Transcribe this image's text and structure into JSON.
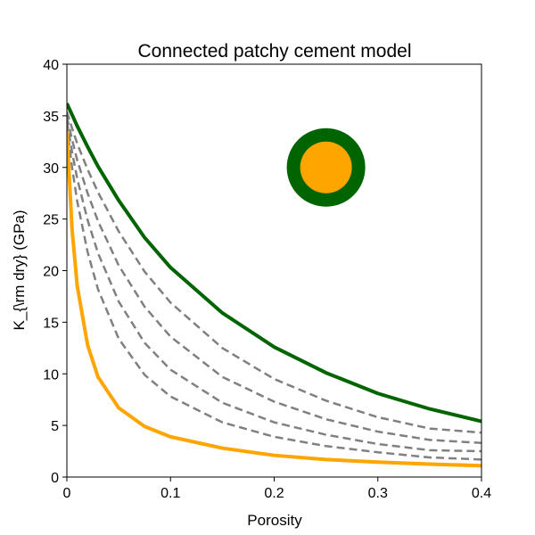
{
  "chart_data": {
    "type": "line",
    "title": "Connected patchy cement model",
    "xlabel": "Porosity",
    "ylabel": "K_{\\rm dry} (GPa)",
    "xlim": [
      0,
      0.4
    ],
    "ylim": [
      0,
      40
    ],
    "x_ticks": [
      0,
      0.1,
      0.2,
      0.3,
      0.4
    ],
    "x_tick_labels": [
      "0",
      "0.1",
      "0.2",
      "0.3",
      "0.4"
    ],
    "y_ticks": [
      0,
      5,
      10,
      15,
      20,
      25,
      30,
      35,
      40
    ],
    "y_tick_labels": [
      "0",
      "5",
      "10",
      "15",
      "20",
      "25",
      "30",
      "35",
      "40"
    ],
    "grid": false,
    "x": [
      0,
      0.005,
      0.01,
      0.02,
      0.03,
      0.05,
      0.075,
      0.1,
      0.15,
      0.2,
      0.25,
      0.3,
      0.35,
      0.4
    ],
    "series": [
      {
        "color": "#006400",
        "style": "solid",
        "values": [
          36.2,
          35.1,
          34.0,
          32.0,
          30.1,
          26.8,
          23.2,
          20.3,
          15.9,
          12.6,
          10.1,
          8.1,
          6.6,
          5.4
        ]
      },
      {
        "color": "#808080",
        "style": "dashed",
        "values": [
          35.4,
          33.8,
          32.3,
          29.8,
          27.6,
          23.8,
          19.9,
          16.9,
          12.5,
          9.5,
          7.4,
          5.8,
          4.7,
          4.3
        ]
      },
      {
        "color": "#808080",
        "style": "dashed",
        "values": [
          34.9,
          32.7,
          30.7,
          27.5,
          24.8,
          20.5,
          16.5,
          13.6,
          9.7,
          7.3,
          5.6,
          4.4,
          3.6,
          3.3
        ]
      },
      {
        "color": "#808080",
        "style": "dashed",
        "values": [
          34.5,
          31.5,
          28.9,
          24.9,
          21.7,
          17.0,
          13.0,
          10.4,
          7.2,
          5.3,
          4.1,
          3.2,
          2.6,
          2.5
        ]
      },
      {
        "color": "#808080",
        "style": "dashed",
        "values": [
          34.1,
          30.0,
          26.7,
          21.8,
          18.2,
          13.4,
          9.9,
          7.8,
          5.3,
          3.9,
          3.0,
          2.4,
          1.9,
          1.7
        ]
      },
      {
        "color": "#FFA500",
        "style": "solid",
        "values": [
          33.5,
          24.0,
          18.5,
          12.8,
          9.7,
          6.7,
          4.9,
          3.9,
          2.8,
          2.1,
          1.7,
          1.45,
          1.25,
          1.1
        ]
      }
    ],
    "inset_icon": {
      "center": [
        0.25,
        30
      ],
      "outer_color": "#006400",
      "inner_color": "#FFA500"
    }
  }
}
